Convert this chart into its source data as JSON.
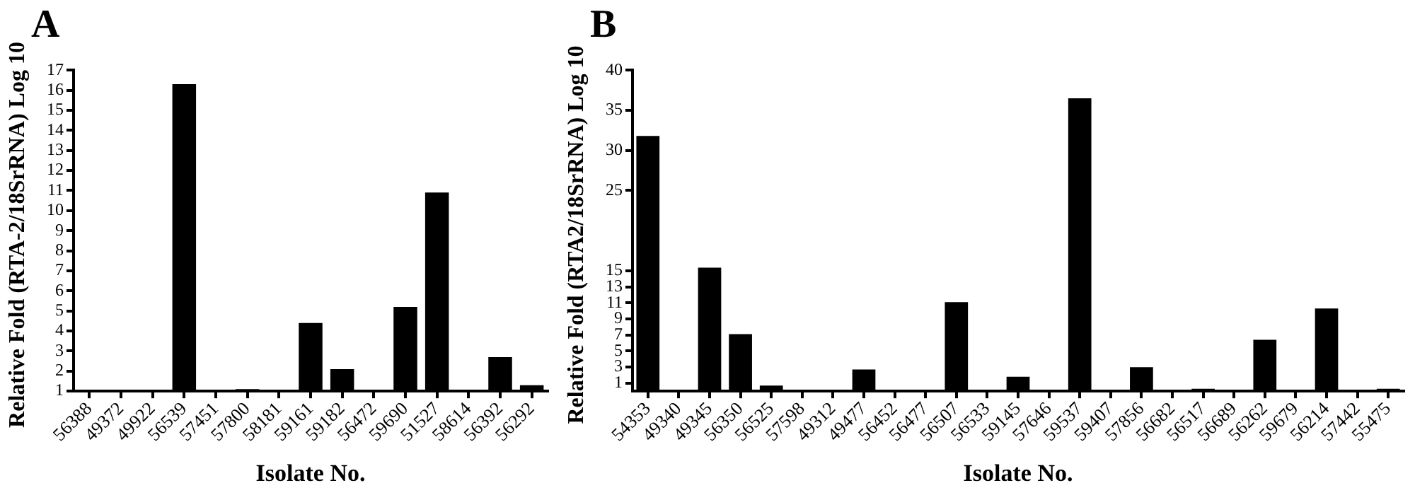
{
  "chart_data": [
    {
      "type": "bar",
      "title": "A",
      "xlabel": "Isolate No.",
      "ylabel": "Relative Fold (RTA-2/18SrRNA) Log 10",
      "categories": [
        "56388",
        "49372",
        "49922",
        "56539",
        "57451",
        "57800",
        "58181",
        "59161",
        "59182",
        "56472",
        "59690",
        "51527",
        "58614",
        "56392",
        "56292"
      ],
      "values": [
        1,
        1,
        1,
        16.3,
        1,
        1.1,
        1,
        4.4,
        2.1,
        1,
        5.2,
        10.9,
        1,
        2.7,
        1.3
      ],
      "color": "#000000",
      "ylim": [
        1,
        17
      ],
      "yticks": [
        1,
        2,
        3,
        4,
        5,
        6,
        7,
        8,
        9,
        10,
        11,
        12,
        13,
        14,
        15,
        16,
        17
      ],
      "grid": false,
      "legend": false
    },
    {
      "type": "bar",
      "title": "B",
      "xlabel": "Isolate No.",
      "ylabel": "Relative Fold (RTA2/18SrRNA) Log 10",
      "categories": [
        "54353",
        "49340",
        "49345",
        "56350",
        "56525",
        "57598",
        "49312",
        "49477",
        "56452",
        "56477",
        "56507",
        "56533",
        "59145",
        "57646",
        "59537",
        "59407",
        "57856",
        "56682",
        "56517",
        "56689",
        "56262",
        "59679",
        "56214",
        "57442",
        "55475"
      ],
      "values": [
        31.8,
        0,
        15.4,
        7.1,
        0.7,
        0.2,
        0,
        2.7,
        0.2,
        0,
        11.1,
        0,
        1.8,
        0,
        36.5,
        0.2,
        3,
        0,
        0.3,
        0,
        6.4,
        0,
        10.3,
        0,
        0.3
      ],
      "color": "#000000",
      "ylim": [
        0,
        40
      ],
      "yticks": [
        1,
        3,
        5,
        7,
        9,
        11,
        13,
        15,
        25,
        30,
        35,
        40
      ],
      "grid": false,
      "legend": false
    }
  ]
}
